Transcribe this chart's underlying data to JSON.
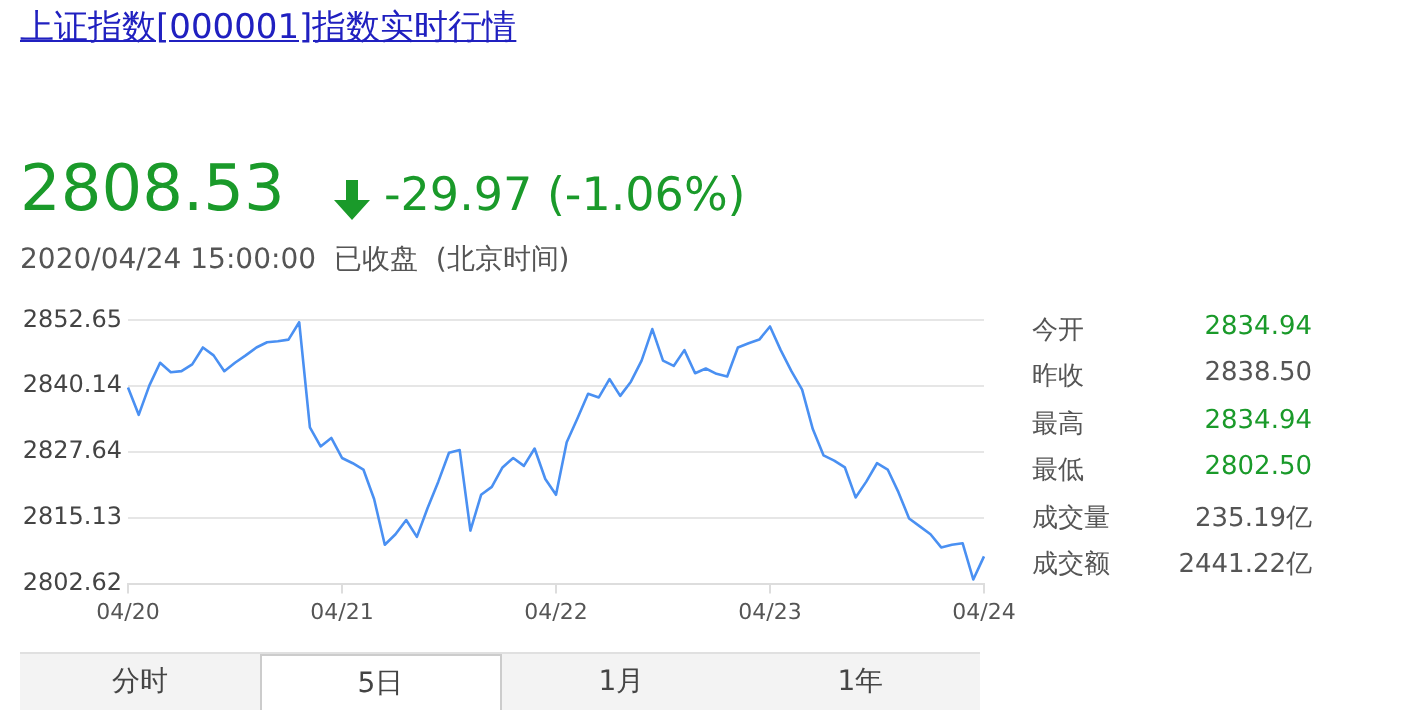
{
  "chart_data": {
    "type": "line",
    "title": "上证指数[000001]指数实时行情",
    "annotations": [
      "2808.53",
      "-29.97 (-1.06%)",
      "2020/04/24 15:00:00  已收盘  (北京时间)",
      "今开",
      "2834.94",
      "昨收",
      "2838.50",
      "最高",
      "2834.94",
      "最低",
      "2802.50",
      "成交量",
      "235.19亿",
      "成交额",
      "2441.22亿",
      "分时",
      "5日",
      "1月",
      "1年"
    ],
    "categories": [
      "04/20",
      null,
      null,
      null,
      null,
      null,
      null,
      null,
      null,
      null,
      null,
      null,
      null,
      null,
      null,
      null,
      null,
      null,
      null,
      null,
      "04/21",
      null,
      null,
      null,
      null,
      null,
      null,
      null,
      null,
      null,
      null,
      null,
      null,
      null,
      null,
      null,
      null,
      null,
      null,
      null,
      "04/22",
      null,
      null,
      null,
      null,
      null,
      null,
      null,
      null,
      null,
      null,
      null,
      null,
      null,
      null,
      null,
      null,
      null,
      null,
      null,
      "04/23",
      null,
      null,
      null,
      null,
      null,
      null,
      null,
      null,
      null,
      null,
      null,
      null,
      null,
      null,
      null,
      null,
      null,
      null,
      null,
      "04/24"
    ],
    "ylim": [
      2802.62,
      2852.65
    ],
    "yticks": [
      2802.62,
      2815.13,
      2827.64,
      2840.14,
      2852.65
    ],
    "grid": "y",
    "legend": false,
    "marker": "none",
    "line_style": "solid",
    "series": [
      {
        "color": "#4a90f2",
        "values": [
          2839.9,
          2834.7,
          2840.3,
          2844.6,
          2842.8,
          2843,
          2844.3,
          2847.5,
          2846,
          2843,
          2844.6,
          2846,
          2847.5,
          2848.5,
          2848.7,
          2849,
          2852.3,
          2832.3,
          2828.7,
          2830.3,
          2826.5,
          2825.5,
          2824.3,
          2818.7,
          2810,
          2812,
          2814.7,
          2811.5,
          2817,
          2822,
          2827.5,
          2828,
          2812.7,
          2819.5,
          2821,
          2824.7,
          2826.5,
          2825,
          2828.3,
          2822.5,
          2819.5,
          2829.5,
          2834,
          2838.7,
          2838,
          2841.5,
          2838.3,
          2841,
          2845,
          2851,
          2845,
          2844,
          2847,
          2842.6,
          2843.5,
          2842.5,
          2842,
          2847.5,
          2848.3,
          2849,
          2851.5,
          2847,
          2843,
          2839.5,
          2832,
          2827,
          2826,
          2824.7,
          2819,
          2822,
          2825.5,
          2824.3,
          2820,
          2815,
          2813.5,
          2812,
          2809.5,
          2810,
          2810.3,
          2803.4,
          2807.8
        ]
      }
    ]
  }
}
